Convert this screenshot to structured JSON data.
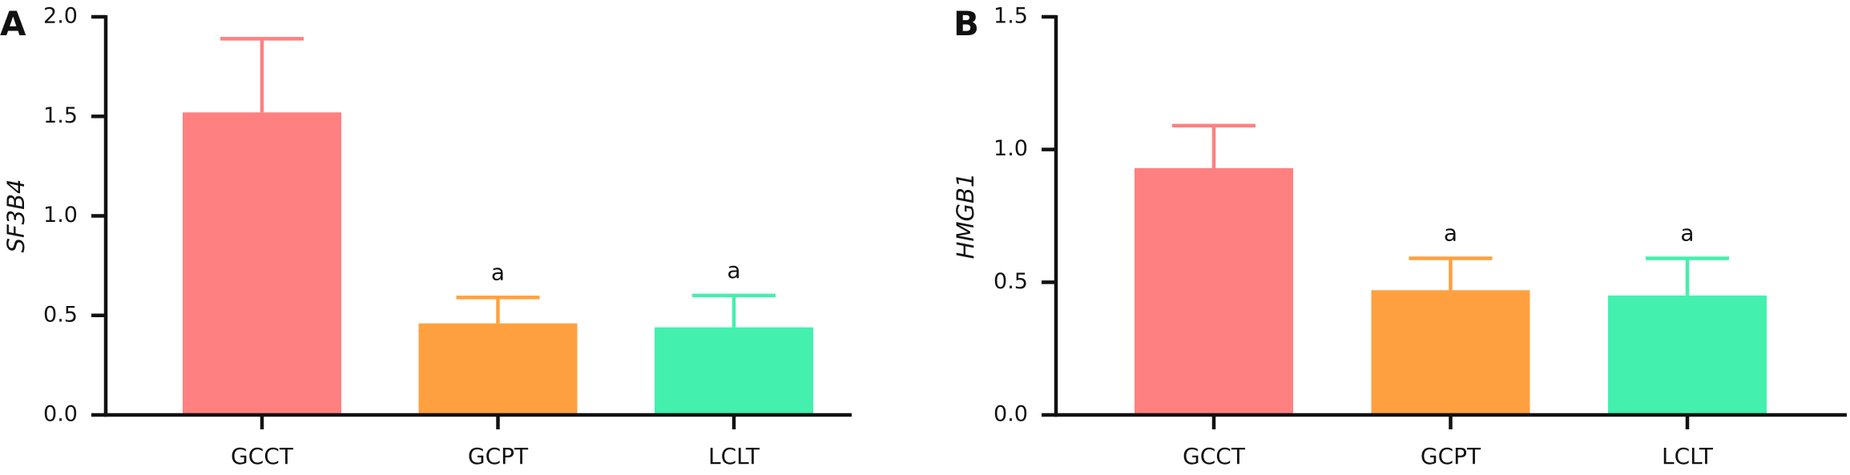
{
  "chart_data": [
    {
      "type": "bar",
      "panel_label": "A",
      "title": "",
      "xlabel": "",
      "ylabel": "SF3B4",
      "categories": [
        "GCCT",
        "GCPT",
        "LCLT"
      ],
      "values": [
        1.52,
        0.46,
        0.44
      ],
      "errors": [
        0.37,
        0.13,
        0.16
      ],
      "annotations": [
        "",
        "a",
        "a"
      ],
      "ylim": [
        0,
        2.0
      ],
      "yticks": [
        "0.0",
        "0.5",
        "1.0",
        "1.5",
        "2.0"
      ],
      "colors": [
        "#FF8080",
        "#FFA040",
        "#43F0AE"
      ],
      "grid": false,
      "legend": "none"
    },
    {
      "type": "bar",
      "panel_label": "B",
      "title": "",
      "xlabel": "",
      "ylabel": "HMGB1",
      "categories": [
        "GCCT",
        "GCPT",
        "LCLT"
      ],
      "values": [
        0.93,
        0.47,
        0.45
      ],
      "errors": [
        0.16,
        0.12,
        0.14
      ],
      "annotations": [
        "",
        "a",
        "a"
      ],
      "ylim": [
        0,
        1.5
      ],
      "yticks": [
        "0.0",
        "0.5",
        "1.0",
        "1.5"
      ],
      "colors": [
        "#FF8080",
        "#FFA040",
        "#43F0AE"
      ],
      "grid": false,
      "legend": "none"
    }
  ]
}
